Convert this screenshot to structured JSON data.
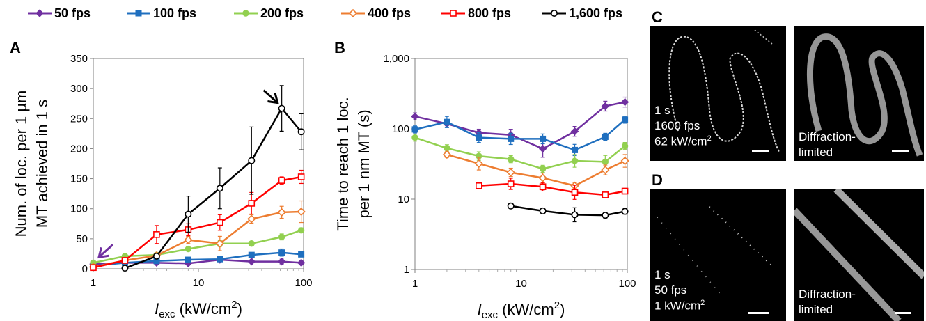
{
  "legend": [
    {
      "name": "50 fps",
      "color": "#7030a0",
      "marker": "diamond-filled"
    },
    {
      "name": "100 fps",
      "color": "#1f6fbf",
      "marker": "square-filled"
    },
    {
      "name": "200 fps",
      "color": "#92d050",
      "marker": "circle-filled"
    },
    {
      "name": "400 fps",
      "color": "#ed7d31",
      "marker": "diamond-open"
    },
    {
      "name": "800 fps",
      "color": "#ff0000",
      "marker": "square-open"
    },
    {
      "name": "1,600 fps",
      "color": "#000000",
      "marker": "circle-open"
    }
  ],
  "panels": {
    "a": "A",
    "b": "B",
    "c": "C",
    "d": "D"
  },
  "chart_data": [
    {
      "type": "line",
      "panel": "A",
      "xscale": "log",
      "xlim": [
        1,
        100
      ],
      "ylim": [
        0,
        350
      ],
      "xticks": [
        "1",
        "10",
        "100"
      ],
      "yticks": [
        "0",
        "50",
        "100",
        "150",
        "200",
        "250",
        "300",
        "350"
      ],
      "ylabel_lines": [
        "Num. of loc. per 1 µm",
        "MT achieved in 1 s"
      ],
      "xlabel": {
        "italic": "I",
        "sub": "exc",
        "text": " (kW/cm",
        "sup": "2",
        "end": ")"
      },
      "series": [
        {
          "name": "50 fps",
          "x": [
            1,
            2,
            4,
            8,
            16,
            32,
            62,
            95
          ],
          "y": [
            8,
            10,
            10,
            9,
            15,
            12,
            12,
            10
          ],
          "err": [
            1,
            1,
            1,
            1,
            2,
            2,
            4,
            2
          ]
        },
        {
          "name": "100 fps",
          "x": [
            1,
            2,
            4,
            8,
            16,
            32,
            62,
            95
          ],
          "y": [
            5,
            10,
            13,
            15,
            16,
            23,
            27,
            24
          ],
          "err": [
            1,
            1,
            2,
            2,
            2,
            3,
            6,
            3
          ]
        },
        {
          "name": "200 fps",
          "x": [
            1,
            2,
            4,
            8,
            16,
            32,
            62,
            95
          ],
          "y": [
            10,
            21,
            23,
            33,
            42,
            42,
            53,
            64
          ],
          "err": [
            1,
            2,
            2,
            3,
            5,
            3,
            5,
            4
          ]
        },
        {
          "name": "400 fps",
          "x": [
            1,
            2,
            4,
            8,
            16,
            32,
            62,
            95
          ],
          "y": [
            3,
            14,
            22,
            48,
            42,
            83,
            94,
            95
          ],
          "err": [
            1,
            2,
            4,
            6,
            12,
            7,
            10,
            18
          ]
        },
        {
          "name": "800 fps",
          "x": [
            1,
            2,
            4,
            8,
            16,
            32,
            62,
            95
          ],
          "y": [
            2,
            14,
            57,
            65,
            77,
            109,
            147,
            153
          ],
          "err": [
            1,
            2,
            15,
            10,
            13,
            18,
            6,
            11
          ]
        },
        {
          "name": "1,600 fps",
          "x": [
            2,
            4,
            8,
            16,
            32,
            62,
            95
          ],
          "y": [
            1,
            21,
            91,
            134,
            180,
            267,
            228
          ],
          "err": [
            1,
            3,
            30,
            34,
            56,
            38,
            30
          ]
        }
      ],
      "annotations": [
        {
          "type": "arrow",
          "color": "#7030a0",
          "points_to": {
            "x": 1,
            "y": 10
          }
        },
        {
          "type": "arrow",
          "color": "#000000",
          "points_to": {
            "x": 62,
            "y": 267
          }
        }
      ]
    },
    {
      "type": "line",
      "panel": "B",
      "xscale": "log",
      "yscale": "log",
      "xlim": [
        1,
        100
      ],
      "ylim": [
        1,
        1000
      ],
      "xticks": [
        "1",
        "10",
        "100"
      ],
      "yticks": [
        "1",
        "10",
        "100",
        "1,000"
      ],
      "ylabel_lines": [
        "Time to reach 1 loc.",
        "per 1 nm MT (s)"
      ],
      "xlabel": {
        "italic": "I",
        "sub": "exc",
        "text": " (kW/cm",
        "sup": "2",
        "end": ")"
      },
      "series": [
        {
          "name": "50 fps",
          "x": [
            1,
            2,
            4,
            8,
            16,
            32,
            62,
            95
          ],
          "y": [
            150,
            118,
            88,
            82,
            52,
            92,
            210,
            240
          ],
          "err": [
            0.05,
            0.05,
            0.05,
            0.08,
            0.12,
            0.07,
            0.07,
            0.07
          ]
        },
        {
          "name": "100 fps",
          "x": [
            1,
            2,
            4,
            8,
            16,
            32,
            62,
            95
          ],
          "y": [
            98,
            125,
            75,
            72,
            72,
            50,
            77,
            135
          ],
          "err": [
            0.05,
            0.08,
            0.07,
            0.08,
            0.07,
            0.08,
            0.05,
            0.05
          ]
        },
        {
          "name": "200 fps",
          "x": [
            1,
            2,
            4,
            8,
            16,
            32,
            62,
            95
          ],
          "y": [
            75,
            53,
            41,
            37,
            27,
            35,
            34,
            57
          ],
          "err": [
            0.05,
            0.05,
            0.06,
            0.05,
            0.05,
            0.09,
            0.09,
            0.05
          ]
        },
        {
          "name": "400 fps",
          "x": [
            2,
            4,
            8,
            16,
            32,
            62,
            95
          ],
          "y": [
            43,
            32,
            24,
            20,
            15.5,
            26,
            35
          ],
          "err": [
            0.04,
            0.09,
            0.06,
            0.07,
            0.04,
            0.07,
            0.09
          ]
        },
        {
          "name": "800 fps",
          "x": [
            4,
            8,
            16,
            32,
            62,
            95
          ],
          "y": [
            15.5,
            16.5,
            15,
            12.5,
            11.5,
            13
          ],
          "err": [
            0.03,
            0.08,
            0.06,
            0.1,
            0.03,
            0.04
          ]
        },
        {
          "name": "1,600 fps",
          "x": [
            8,
            16,
            32,
            62,
            95
          ],
          "y": [
            8,
            6.8,
            6,
            5.9,
            6.7
          ],
          "err": [
            0.03,
            0.03,
            0.1,
            0.04,
            0.04
          ]
        }
      ]
    }
  ],
  "micrographs": {
    "c_left": {
      "lines": [
        "1 s",
        "1600 fps",
        "62 kW/cm"
      ],
      "sup": "2"
    },
    "c_right": {
      "lines": [
        "Diffraction-",
        "limited"
      ]
    },
    "d_left": {
      "lines": [
        "1 s",
        "50 fps",
        "1 kW/cm"
      ],
      "sup": "2"
    },
    "d_right": {
      "lines": [
        "Diffraction-",
        "limited"
      ]
    }
  }
}
